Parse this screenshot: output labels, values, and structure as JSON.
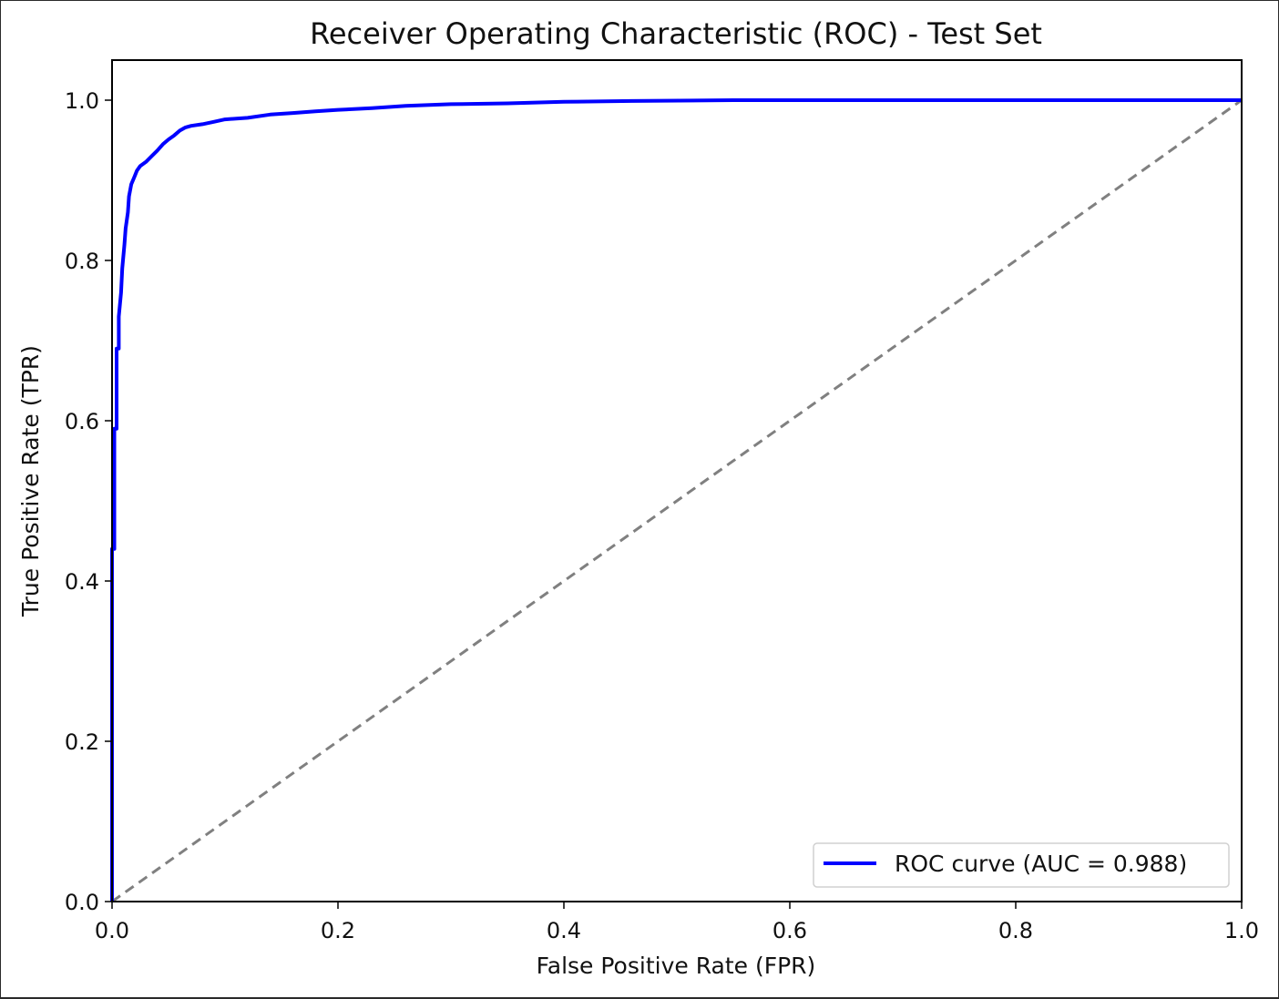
{
  "chart_data": {
    "type": "line",
    "title": "Receiver Operating Characteristic (ROC) - Test Set",
    "xlabel": "False Positive Rate (FPR)",
    "ylabel": "True Positive Rate (TPR)",
    "xlim": [
      0.0,
      1.0
    ],
    "ylim": [
      0.0,
      1.05
    ],
    "x_ticks": [
      "0.0",
      "0.2",
      "0.4",
      "0.6",
      "0.8",
      "1.0"
    ],
    "y_ticks": [
      "0.0",
      "0.2",
      "0.4",
      "0.6",
      "0.8",
      "1.0"
    ],
    "grid": false,
    "legend_position": "lower-right",
    "series": [
      {
        "name": "ROC curve (AUC = 0.988)",
        "color": "#0000ff",
        "style": "solid",
        "x": [
          0.0,
          0.0,
          0.002,
          0.002,
          0.004,
          0.004,
          0.006,
          0.006,
          0.008,
          0.009,
          0.011,
          0.012,
          0.014,
          0.015,
          0.017,
          0.02,
          0.022,
          0.025,
          0.03,
          0.035,
          0.04,
          0.045,
          0.05,
          0.055,
          0.06,
          0.065,
          0.07,
          0.08,
          0.09,
          0.1,
          0.12,
          0.14,
          0.16,
          0.18,
          0.2,
          0.23,
          0.26,
          0.3,
          0.35,
          0.4,
          0.46,
          0.55,
          0.7,
          0.85,
          1.0
        ],
        "y": [
          0.0,
          0.44,
          0.44,
          0.59,
          0.59,
          0.69,
          0.69,
          0.73,
          0.76,
          0.79,
          0.82,
          0.84,
          0.86,
          0.88,
          0.895,
          0.905,
          0.912,
          0.918,
          0.923,
          0.93,
          0.937,
          0.945,
          0.951,
          0.956,
          0.962,
          0.966,
          0.968,
          0.97,
          0.973,
          0.976,
          0.978,
          0.982,
          0.984,
          0.986,
          0.988,
          0.99,
          0.993,
          0.995,
          0.996,
          0.998,
          0.999,
          1.0,
          1.0,
          1.0,
          1.0
        ]
      },
      {
        "name": "",
        "color": "#808080",
        "style": "dashed",
        "x": [
          0.0,
          1.0
        ],
        "y": [
          0.0,
          1.0
        ]
      }
    ]
  }
}
